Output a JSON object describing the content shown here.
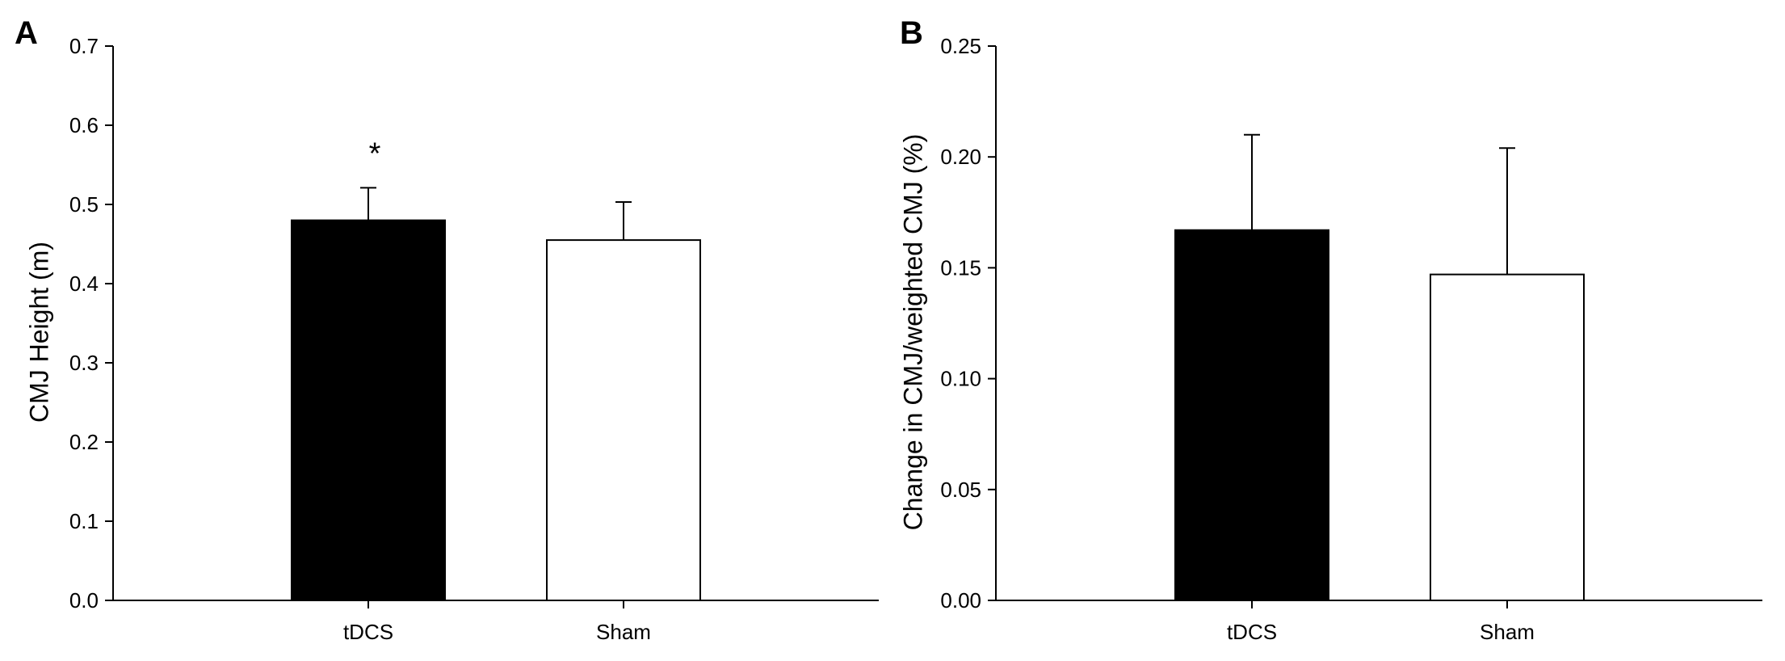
{
  "chart_data": [
    {
      "panel_label": "A",
      "type": "bar",
      "categories": [
        "tDCS",
        "Sham"
      ],
      "values": [
        0.48,
        0.455
      ],
      "errors": [
        0.041,
        0.048
      ],
      "bar_colors": [
        "#000000",
        "#ffffff"
      ],
      "annotations": [
        {
          "category": "tDCS",
          "text": "*"
        }
      ],
      "title": "",
      "xlabel": "",
      "ylabel": "CMJ Height (m)",
      "ylim": [
        0,
        0.7
      ],
      "yticks": [
        "0.0",
        "0.1",
        "0.2",
        "0.3",
        "0.4",
        "0.5",
        "0.6",
        "0.7"
      ],
      "grid": false
    },
    {
      "panel_label": "B",
      "type": "bar",
      "categories": [
        "tDCS",
        "Sham"
      ],
      "values": [
        0.167,
        0.147
      ],
      "errors": [
        0.043,
        0.057
      ],
      "bar_colors": [
        "#000000",
        "#ffffff"
      ],
      "annotations": [],
      "title": "",
      "xlabel": "",
      "ylabel": "Change in CMJ/weighted CMJ (%)",
      "ylim": [
        0,
        0.25
      ],
      "yticks": [
        "0.00",
        "0.05",
        "0.10",
        "0.15",
        "0.20",
        "0.25"
      ],
      "grid": false
    }
  ]
}
